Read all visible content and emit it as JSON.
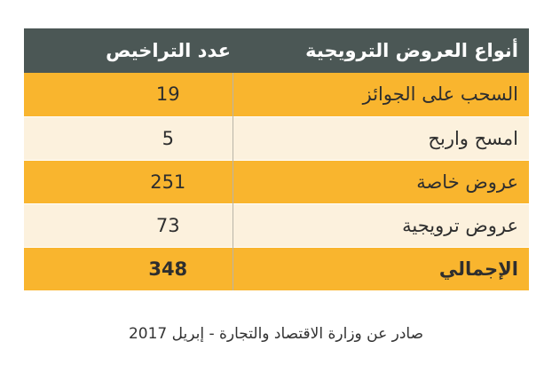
{
  "table": {
    "header": [
      "أنواع العروض الترويجية",
      "عدد التراخيص"
    ],
    "rows": [
      [
        "السحب على الجوائز",
        19
      ],
      [
        "امسح واربح",
        5
      ],
      [
        "عروض خاصة",
        251
      ],
      [
        "عروض ترويجية",
        73
      ]
    ],
    "total": [
      "الإجمالي",
      348
    ]
  },
  "footer": "صادر عن وزارة الاقتصاد والتجارة - إبريل 2017"
}
